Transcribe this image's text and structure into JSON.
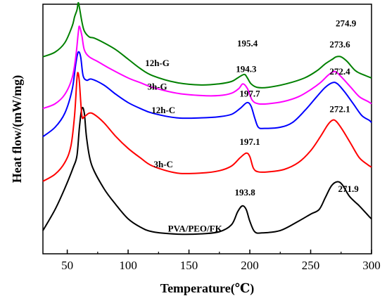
{
  "chart_data": {
    "type": "line",
    "title": "",
    "xlabel": "Temperature(℃)",
    "ylabel": "Heat flow/(mW/mg)",
    "xlim": [
      30,
      300
    ],
    "ylim": [
      0,
      1
    ],
    "xticks": [
      50,
      100,
      150,
      200,
      250,
      300
    ],
    "grid": false,
    "legend": "none (curve labels placed on plot)",
    "series": [
      {
        "name": "PVA/PEO/FK",
        "color": "#000000",
        "points": [
          [
            30,
            0.06
          ],
          [
            40,
            0.15
          ],
          [
            48,
            0.24
          ],
          [
            55,
            0.33
          ],
          [
            58,
            0.38
          ],
          [
            60,
            0.5
          ],
          [
            62,
            0.58
          ],
          [
            64,
            0.56
          ],
          [
            66,
            0.45
          ],
          [
            70,
            0.34
          ],
          [
            80,
            0.24
          ],
          [
            90,
            0.17
          ],
          [
            100,
            0.11
          ],
          [
            110,
            0.075
          ],
          [
            120,
            0.055
          ],
          [
            140,
            0.045
          ],
          [
            160,
            0.046
          ],
          [
            175,
            0.055
          ],
          [
            185,
            0.085
          ],
          [
            190,
            0.14
          ],
          [
            193.8,
            0.165
          ],
          [
            197,
            0.15
          ],
          [
            200,
            0.1
          ],
          [
            204,
            0.055
          ],
          [
            210,
            0.05
          ],
          [
            225,
            0.06
          ],
          [
            240,
            0.1
          ],
          [
            250,
            0.13
          ],
          [
            257,
            0.15
          ],
          [
            262,
            0.2
          ],
          [
            267,
            0.25
          ],
          [
            271.9,
            0.268
          ],
          [
            276,
            0.255
          ],
          [
            282,
            0.205
          ],
          [
            290,
            0.165
          ],
          [
            298,
            0.12
          ],
          [
            300,
            0.11
          ]
        ]
      },
      {
        "name": "3h-C",
        "color": "#ff0000",
        "points": [
          [
            30,
            0.27
          ],
          [
            40,
            0.3
          ],
          [
            48,
            0.35
          ],
          [
            53,
            0.42
          ],
          [
            56,
            0.55
          ],
          [
            58,
            0.71
          ],
          [
            59,
            0.73
          ],
          [
            60,
            0.69
          ],
          [
            62,
            0.55
          ],
          [
            64,
            0.545
          ],
          [
            68,
            0.56
          ],
          [
            72,
            0.555
          ],
          [
            80,
            0.52
          ],
          [
            90,
            0.46
          ],
          [
            100,
            0.41
          ],
          [
            110,
            0.37
          ],
          [
            120,
            0.335
          ],
          [
            140,
            0.305
          ],
          [
            160,
            0.305
          ],
          [
            175,
            0.315
          ],
          [
            185,
            0.335
          ],
          [
            192,
            0.37
          ],
          [
            197.1,
            0.39
          ],
          [
            200,
            0.375
          ],
          [
            203,
            0.325
          ],
          [
            207,
            0.31
          ],
          [
            215,
            0.31
          ],
          [
            228,
            0.32
          ],
          [
            240,
            0.35
          ],
          [
            250,
            0.4
          ],
          [
            258,
            0.46
          ],
          [
            264,
            0.51
          ],
          [
            268,
            0.53
          ],
          [
            271,
            0.525
          ],
          [
            276,
            0.49
          ],
          [
            283,
            0.43
          ],
          [
            290,
            0.37
          ],
          [
            297,
            0.34
          ],
          [
            300,
            0.33
          ]
        ]
      },
      {
        "name": "12h-C",
        "color": "#0000ff",
        "points": [
          [
            30,
            0.46
          ],
          [
            40,
            0.5
          ],
          [
            48,
            0.56
          ],
          [
            54,
            0.66
          ],
          [
            57,
            0.77
          ],
          [
            59,
            0.82
          ],
          [
            61,
            0.8
          ],
          [
            63,
            0.72
          ],
          [
            66,
            0.7
          ],
          [
            70,
            0.705
          ],
          [
            80,
            0.68
          ],
          [
            90,
            0.64
          ],
          [
            100,
            0.605
          ],
          [
            110,
            0.58
          ],
          [
            120,
            0.56
          ],
          [
            140,
            0.54
          ],
          [
            160,
            0.54
          ],
          [
            175,
            0.545
          ],
          [
            185,
            0.555
          ],
          [
            192,
            0.58
          ],
          [
            197.7,
            0.605
          ],
          [
            201,
            0.59
          ],
          [
            204,
            0.54
          ],
          [
            207,
            0.5
          ],
          [
            212,
            0.495
          ],
          [
            225,
            0.5
          ],
          [
            235,
            0.52
          ],
          [
            245,
            0.57
          ],
          [
            255,
            0.63
          ],
          [
            262,
            0.67
          ],
          [
            268,
            0.69
          ],
          [
            272,
            0.685
          ],
          [
            278,
            0.65
          ],
          [
            285,
            0.6
          ],
          [
            292,
            0.55
          ],
          [
            298,
            0.53
          ],
          [
            300,
            0.52
          ]
        ]
      },
      {
        "name": "3h-G",
        "color": "#ff00ff",
        "points": [
          [
            30,
            0.58
          ],
          [
            40,
            0.6
          ],
          [
            48,
            0.64
          ],
          [
            54,
            0.71
          ],
          [
            57,
            0.8
          ],
          [
            59,
            0.9
          ],
          [
            60,
            0.93
          ],
          [
            62,
            0.89
          ],
          [
            64,
            0.83
          ],
          [
            68,
            0.8
          ],
          [
            75,
            0.78
          ],
          [
            85,
            0.75
          ],
          [
            100,
            0.71
          ],
          [
            110,
            0.69
          ],
          [
            120,
            0.67
          ],
          [
            140,
            0.645
          ],
          [
            160,
            0.635
          ],
          [
            175,
            0.635
          ],
          [
            185,
            0.645
          ],
          [
            191,
            0.665
          ],
          [
            194.3,
            0.685
          ],
          [
            198,
            0.665
          ],
          [
            202,
            0.615
          ],
          [
            207,
            0.6
          ],
          [
            215,
            0.6
          ],
          [
            228,
            0.61
          ],
          [
            240,
            0.63
          ],
          [
            250,
            0.66
          ],
          [
            258,
            0.69
          ],
          [
            264,
            0.72
          ],
          [
            268,
            0.735
          ],
          [
            271,
            0.735
          ],
          [
            276,
            0.71
          ],
          [
            283,
            0.67
          ],
          [
            290,
            0.63
          ],
          [
            297,
            0.61
          ],
          [
            300,
            0.6
          ]
        ]
      },
      {
        "name": "12h-G",
        "color": "#008000",
        "points": [
          [
            30,
            0.8
          ],
          [
            40,
            0.82
          ],
          [
            48,
            0.86
          ],
          [
            54,
            0.93
          ],
          [
            56,
            0.97
          ],
          [
            58,
            1.0
          ],
          [
            59,
            1.03
          ],
          [
            60,
            1.01
          ],
          [
            62,
            0.95
          ],
          [
            64,
            0.91
          ],
          [
            68,
            0.885
          ],
          [
            72,
            0.88
          ],
          [
            80,
            0.86
          ],
          [
            90,
            0.83
          ],
          [
            100,
            0.79
          ],
          [
            110,
            0.75
          ],
          [
            120,
            0.72
          ],
          [
            140,
            0.69
          ],
          [
            160,
            0.68
          ],
          [
            175,
            0.685
          ],
          [
            185,
            0.695
          ],
          [
            190,
            0.71
          ],
          [
            195.4,
            0.725
          ],
          [
            198,
            0.71
          ],
          [
            201,
            0.685
          ],
          [
            206,
            0.67
          ],
          [
            215,
            0.67
          ],
          [
            230,
            0.685
          ],
          [
            245,
            0.71
          ],
          [
            255,
            0.74
          ],
          [
            262,
            0.77
          ],
          [
            268,
            0.79
          ],
          [
            271,
            0.8
          ],
          [
            274.9,
            0.8
          ],
          [
            280,
            0.78
          ],
          [
            287,
            0.74
          ],
          [
            295,
            0.72
          ],
          [
            300,
            0.71
          ]
        ]
      }
    ],
    "curve_labels": [
      {
        "text": "PVA/PEO/FK",
        "x": 155,
        "y": 0.055,
        "color": "#000000"
      },
      {
        "text": "3h-C",
        "x": 129,
        "y": 0.33,
        "color": "#000000"
      },
      {
        "text": "12h-C",
        "x": 129,
        "y": 0.56,
        "color": "#000000"
      },
      {
        "text": "3h-G",
        "x": 124,
        "y": 0.66,
        "color": "#000000"
      },
      {
        "text": "12h-G",
        "x": 124,
        "y": 0.76,
        "color": "#000000"
      }
    ],
    "peak_labels": [
      {
        "text": "193.8",
        "x": 196,
        "y": 0.21
      },
      {
        "text": "271.9",
        "x": 281,
        "y": 0.225
      },
      {
        "text": "197.1",
        "x": 200,
        "y": 0.425
      },
      {
        "text": "272.1",
        "x": 274,
        "y": 0.565
      },
      {
        "text": "197.7",
        "x": 200,
        "y": 0.63
      },
      {
        "text": "272.4",
        "x": 274,
        "y": 0.725
      },
      {
        "text": "194.3",
        "x": 197,
        "y": 0.735
      },
      {
        "text": "273.6",
        "x": 274,
        "y": 0.84
      },
      {
        "text": "195.4",
        "x": 198,
        "y": 0.845
      },
      {
        "text": "274.9",
        "x": 279,
        "y": 0.93
      }
    ]
  }
}
